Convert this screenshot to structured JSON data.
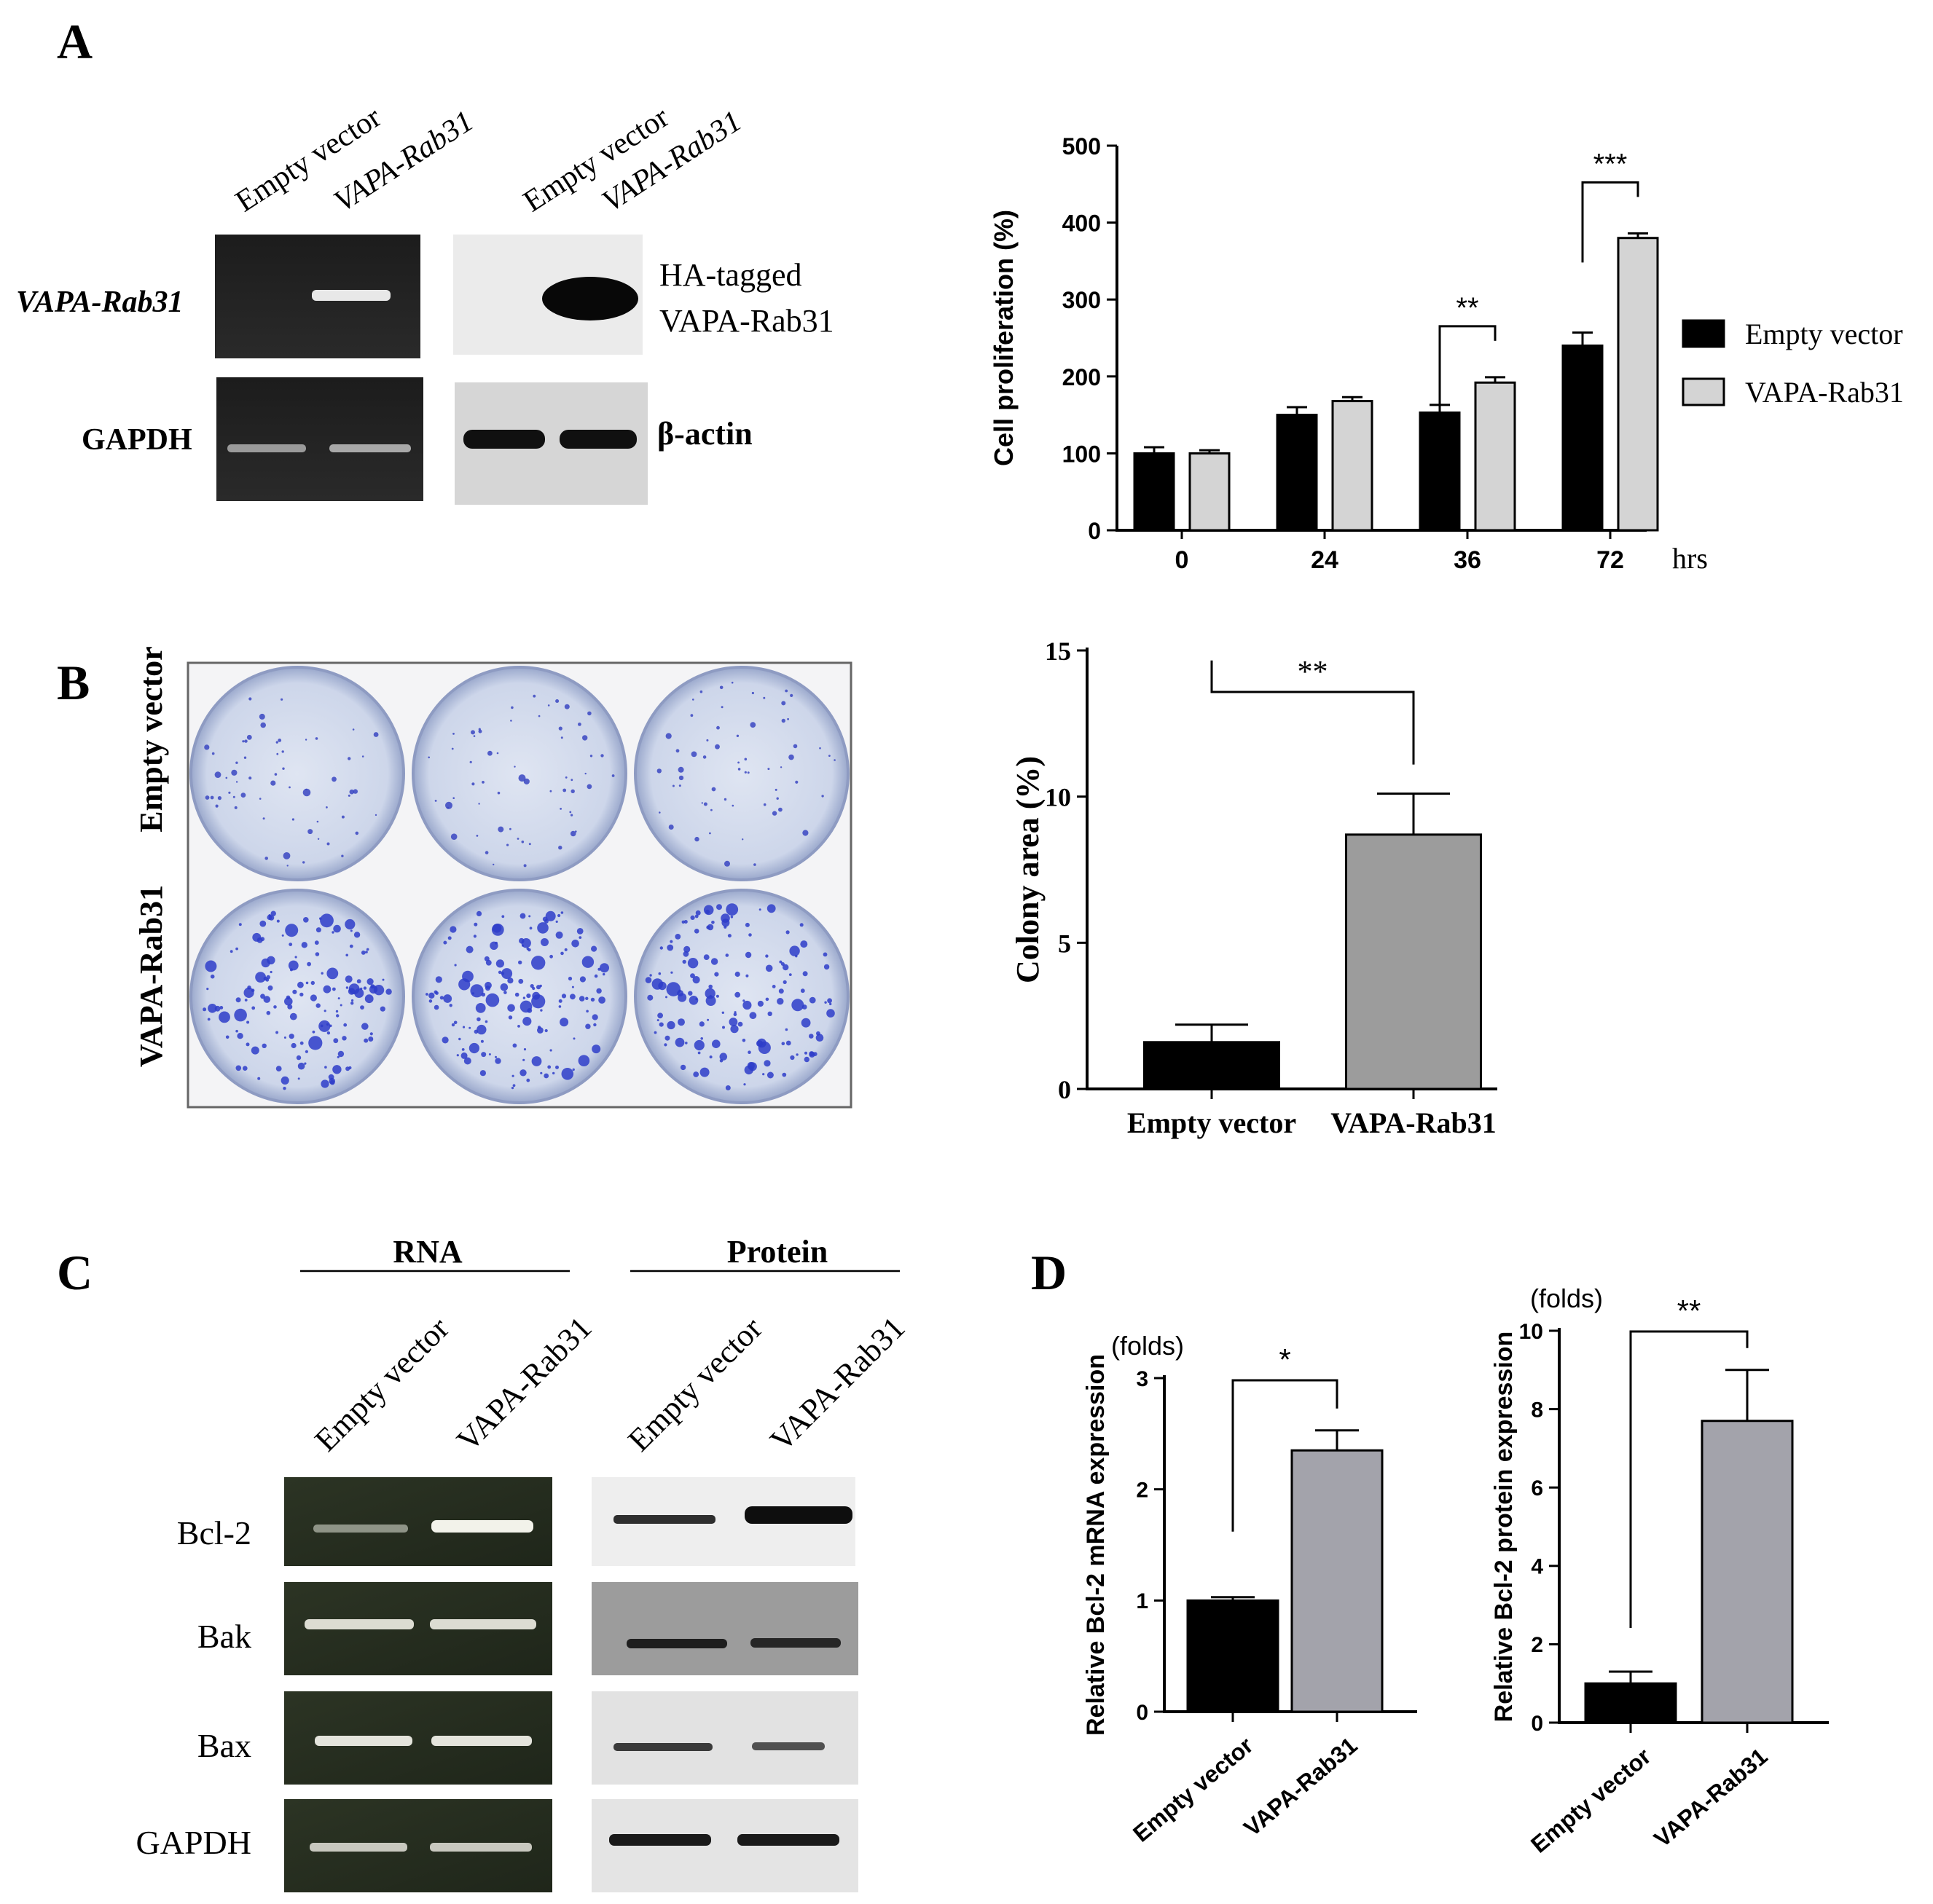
{
  "panels": {
    "A": "A",
    "B": "B",
    "C": "C",
    "D": "D"
  },
  "panelA": {
    "gel_lanes": [
      "Empty vector",
      "VAPA-Rab31"
    ],
    "blot_lanes": [
      "Empty vector",
      "VAPA-Rab31"
    ],
    "row1_label": "VAPA-Rab31",
    "row2_label": "GAPDH",
    "blot_label_line1": "HA-tagged",
    "blot_label_line2": "VAPA-Rab31",
    "actin_label": "β-actin"
  },
  "panelB": {
    "row_labels": [
      "Empty vector",
      "VAPA-Rab31"
    ]
  },
  "panelC": {
    "rna_header": "RNA",
    "protein_header": "Protein",
    "rna_lanes": [
      "Empty vector",
      "VAPA-Rab31"
    ],
    "protein_lanes": [
      "Empty vector",
      "VAPA-Rab31"
    ],
    "rows": [
      "Bcl-2",
      "Bak",
      "Bax",
      "GAPDH"
    ]
  },
  "chart_data": [
    {
      "id": "A-proliferation",
      "type": "bar",
      "categories": [
        "0",
        "24",
        "36",
        "72"
      ],
      "x_unit": "hrs",
      "ylabel": "Cell proliferation (%)",
      "ylim": [
        0,
        500
      ],
      "yticks": [
        0,
        100,
        200,
        300,
        400,
        500
      ],
      "series": [
        {
          "name": "Empty vector",
          "values": [
            100,
            150,
            153,
            240
          ],
          "errors": [
            8,
            10,
            10,
            17
          ],
          "color": "#000000"
        },
        {
          "name": "VAPA-Rab31",
          "values": [
            100,
            168,
            192,
            380
          ],
          "errors": [
            4,
            5,
            7,
            6
          ],
          "color": "#d4d4d4"
        }
      ],
      "significance": [
        {
          "category": "36",
          "label": "**"
        },
        {
          "category": "72",
          "label": "***"
        }
      ],
      "legend": "right"
    },
    {
      "id": "B-colony",
      "type": "bar",
      "categories": [
        "Empty vector",
        "VAPA-Rab31"
      ],
      "values": [
        1.6,
        8.7
      ],
      "errors": [
        0.6,
        1.4
      ],
      "colors": [
        "#000000",
        "#9c9c9c"
      ],
      "ylabel": "Colony area (%)",
      "ylim": [
        0,
        15
      ],
      "yticks": [
        0,
        5,
        10,
        15
      ],
      "significance": "**"
    },
    {
      "id": "D-mrna",
      "type": "bar",
      "categories": [
        "Empty vector",
        "VAPA-Rab31"
      ],
      "values": [
        1.0,
        2.35
      ],
      "errors": [
        0.03,
        0.18
      ],
      "colors": [
        "#000000",
        "#a3a3ab"
      ],
      "ylabel": "Relative Bcl-2 mRNA expression",
      "unit_label": "(folds)",
      "ylim": [
        0,
        3
      ],
      "yticks": [
        0,
        1,
        2,
        3
      ],
      "significance": "*"
    },
    {
      "id": "D-protein",
      "type": "bar",
      "categories": [
        "Empty vector",
        "VAPA-Rab31"
      ],
      "values": [
        1.0,
        7.7
      ],
      "errors": [
        0.3,
        1.3
      ],
      "colors": [
        "#000000",
        "#a3a3ab"
      ],
      "ylabel": "Relative Bcl-2 protein expression",
      "unit_label": "(folds)",
      "ylim": [
        0,
        10
      ],
      "yticks": [
        0,
        2,
        4,
        6,
        8,
        10
      ],
      "significance": "**"
    }
  ]
}
